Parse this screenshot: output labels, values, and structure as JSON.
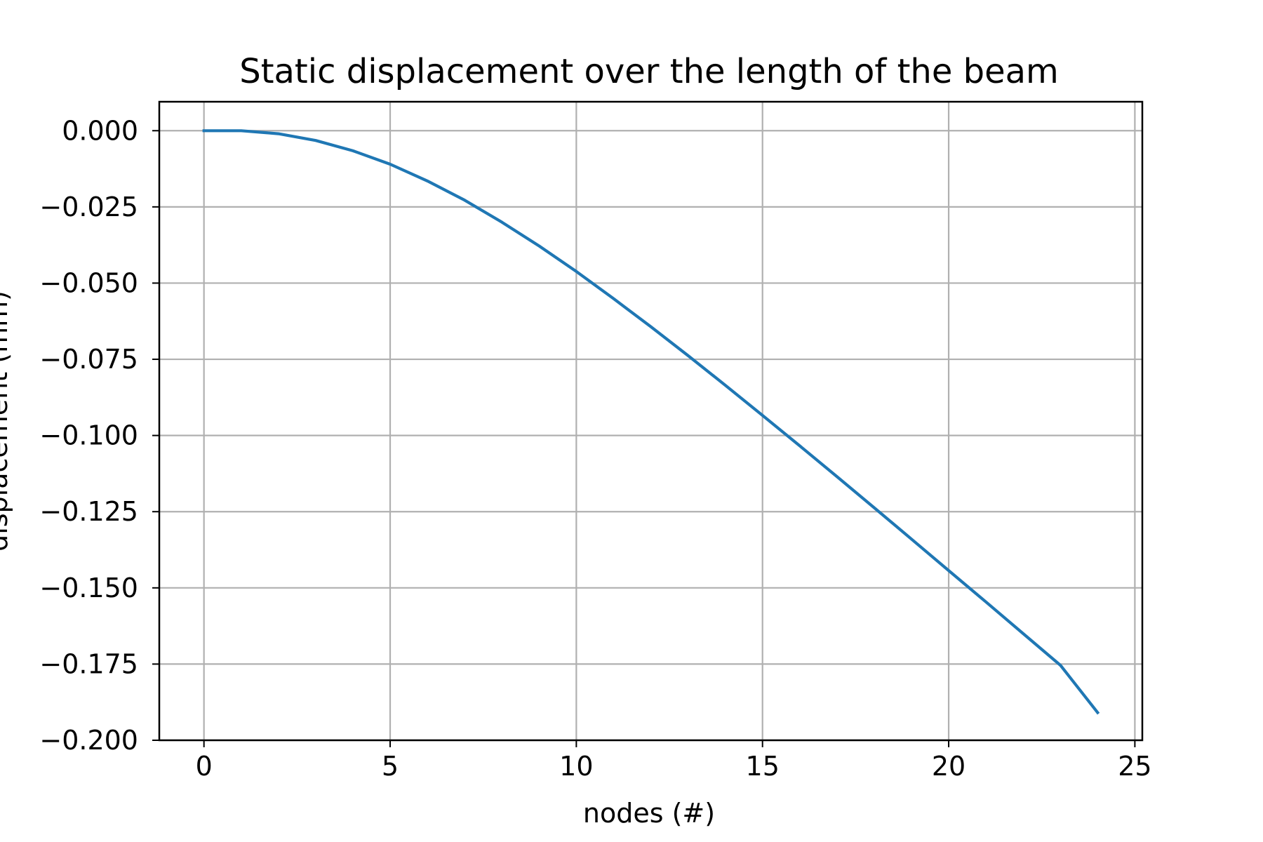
{
  "chart_data": {
    "type": "line",
    "title": "Static displacement over the length of the beam",
    "xlabel": "nodes (#)",
    "ylabel": "displacement (mm)",
    "xlim": [
      -1.2,
      25.2
    ],
    "ylim": [
      -0.2,
      0.0095
    ],
    "xticks": [
      0,
      5,
      10,
      15,
      20,
      25
    ],
    "yticks": [
      0.0,
      -0.025,
      -0.05,
      -0.075,
      -0.1,
      -0.125,
      -0.15,
      -0.175,
      -0.2
    ],
    "xtick_labels": [
      "0",
      "5",
      "10",
      "15",
      "20",
      "25"
    ],
    "ytick_labels": [
      "0.000",
      "−0.025",
      "−0.050",
      "−0.075",
      "−0.100",
      "−0.125",
      "−0.150",
      "−0.175",
      "−0.200"
    ],
    "grid": true,
    "series": [
      {
        "color": "#1f77b4",
        "x": [
          0,
          1,
          2,
          3,
          4,
          5,
          6,
          7,
          8,
          9,
          10,
          11,
          12,
          13,
          14,
          15,
          16,
          17,
          18,
          19,
          20,
          21,
          22,
          23,
          24
        ],
        "y": [
          0.0,
          0.0,
          -0.001,
          -0.0032,
          -0.0066,
          -0.011,
          -0.0165,
          -0.0228,
          -0.03,
          -0.0378,
          -0.0462,
          -0.0551,
          -0.0643,
          -0.0738,
          -0.0835,
          -0.0934,
          -0.1034,
          -0.1135,
          -0.1237,
          -0.134,
          -0.1443,
          -0.1546,
          -0.165,
          -0.1754,
          -0.1909
        ]
      }
    ]
  }
}
